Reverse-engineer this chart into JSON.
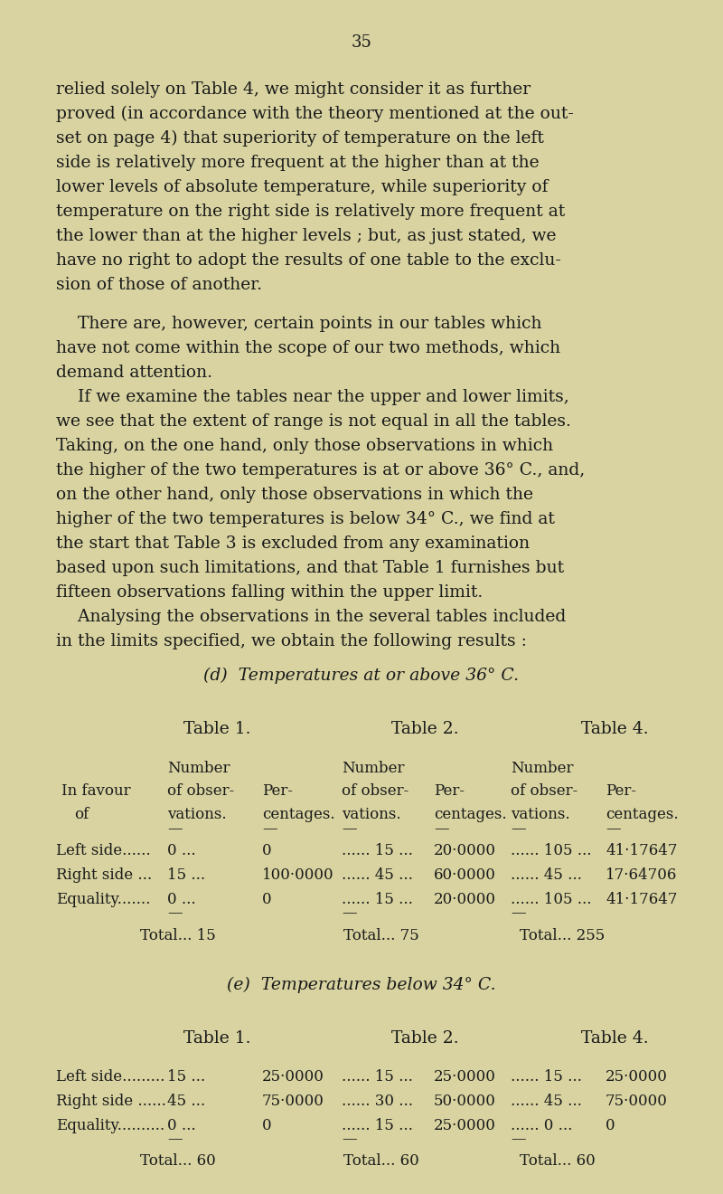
{
  "bg_color": "#d8d3a0",
  "text_color": "#1a1a1a",
  "page_number": "35",
  "para_lines": [
    "relied solely on Table 4, we might consider it as further",
    "proved (in accordance with the theory mentioned at the out-",
    "set on page 4) that superiority of temperature on the left",
    "side is relatively more frequent at the higher than at the",
    "lower levels of absolute temperature, while superiority of",
    "temperature on the right side is relatively more frequent at",
    "the lower than at the higher levels ; but, as just stated, we",
    "have no right to adopt the results of one table to the exclu-",
    "sion of those of another.",
    "",
    "    There are, however, certain points in our tables which",
    "have not come within the scope of our two methods, which",
    "demand attention.",
    "    If we examine the tables near the upper and lower limits,",
    "we see that the extent of range is not equal in all the tables.",
    "Taking, on the one hand, only those observations in which",
    "the higher of the two temperatures is at or above 36° C., and,",
    "on the other hand, only those observations in which the",
    "higher of the two temperatures is below 34° C., we find at",
    "the start that Table 3 is excluded from any examination",
    "based upon such limitations, and that Table 1 furnishes but",
    "fifteen observations falling within the upper limit.",
    "    Analysing the observations in the several tables included",
    "in the limits specified, we obtain the following results :"
  ],
  "section_d_title": "(d)  Temperatures at or above 36° C.",
  "section_e_title": "(e)  Temperatures below 34° C.",
  "table_header_1": "Table 1.",
  "table_header_2": "Table 2.",
  "table_header_4": "Table 4.",
  "d_left": [
    "Left side......",
    "0 ...",
    "0",
    "...... 15 ...",
    "20·0000",
    "...... 105 ...",
    "41·17647"
  ],
  "d_right": [
    "Right side ...",
    "15 ...",
    "100·0000",
    "...... 45 ...",
    "60·0000",
    "...... 45 ...",
    "17·64706"
  ],
  "d_equal": [
    "Equality.......",
    "0 ...",
    "0",
    "...... 15 ...",
    "20·0000",
    "...... 105 ...",
    "41·17647"
  ],
  "d_total1": "Total... 15",
  "d_total2": "Total... 75",
  "d_total4": "Total... 255",
  "e_left": [
    "Left side.........",
    "15 ...",
    "25·0000",
    "...... 15 ...",
    "25·0000",
    "...... 15 ...",
    "25·0000"
  ],
  "e_right": [
    "Right side ......",
    "45 ...",
    "75·0000",
    "...... 30 ...",
    "50·0000",
    "...... 45 ...",
    "75·0000"
  ],
  "e_equal": [
    "Equality..........",
    "0 ...",
    "0",
    "...... 15 ...",
    "25·0000",
    "...... 0 ...",
    "0"
  ],
  "e_total1": "Total... 60",
  "e_total2": "Total... 60",
  "e_total4": "Total... 60"
}
